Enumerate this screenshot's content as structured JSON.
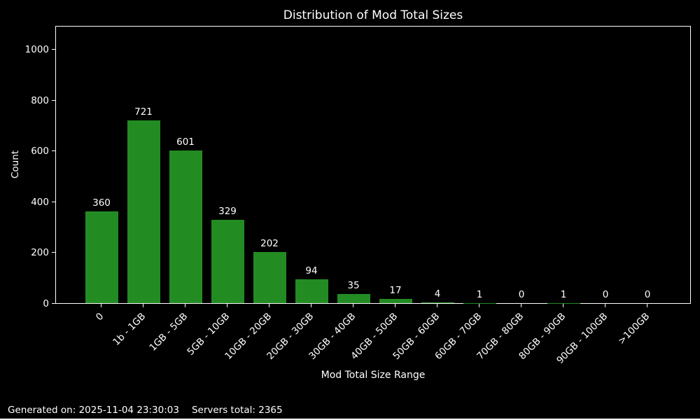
{
  "title": "Distribution of Mod Total Sizes",
  "footer": {
    "generated_on": "Generated on: 2025-11-04 23:30:03",
    "servers_total": "Servers total: 2365"
  },
  "colors": {
    "background": "#000000",
    "text": "#ffffff",
    "bar": "#228B22",
    "axis": "#ffffff"
  },
  "chart_data": {
    "type": "bar",
    "title": "Distribution of Mod Total Sizes",
    "xlabel": "Mod Total Size Range",
    "ylabel": "Count",
    "categories": [
      "0",
      "1b - 1GB",
      "1GB - 5GB",
      "5GB - 10GB",
      "10GB - 20GB",
      "20GB - 30GB",
      "30GB - 40GB",
      "40GB - 50GB",
      "50GB - 60GB",
      "60GB - 70GB",
      "70GB - 80GB",
      "80GB - 90GB",
      "90GB - 100GB",
      ">100GB"
    ],
    "values": [
      360,
      721,
      601,
      329,
      202,
      94,
      35,
      17,
      4,
      1,
      0,
      1,
      0,
      0
    ],
    "yticks": [
      0,
      200,
      400,
      600,
      800,
      1000
    ],
    "ylim": [
      0,
      1095
    ],
    "bar_labels_shown": true,
    "x_tick_rotation": 45,
    "grid": false,
    "legend": null,
    "bar_color": "#228B22",
    "background": "#000000",
    "text_color": "#ffffff"
  }
}
